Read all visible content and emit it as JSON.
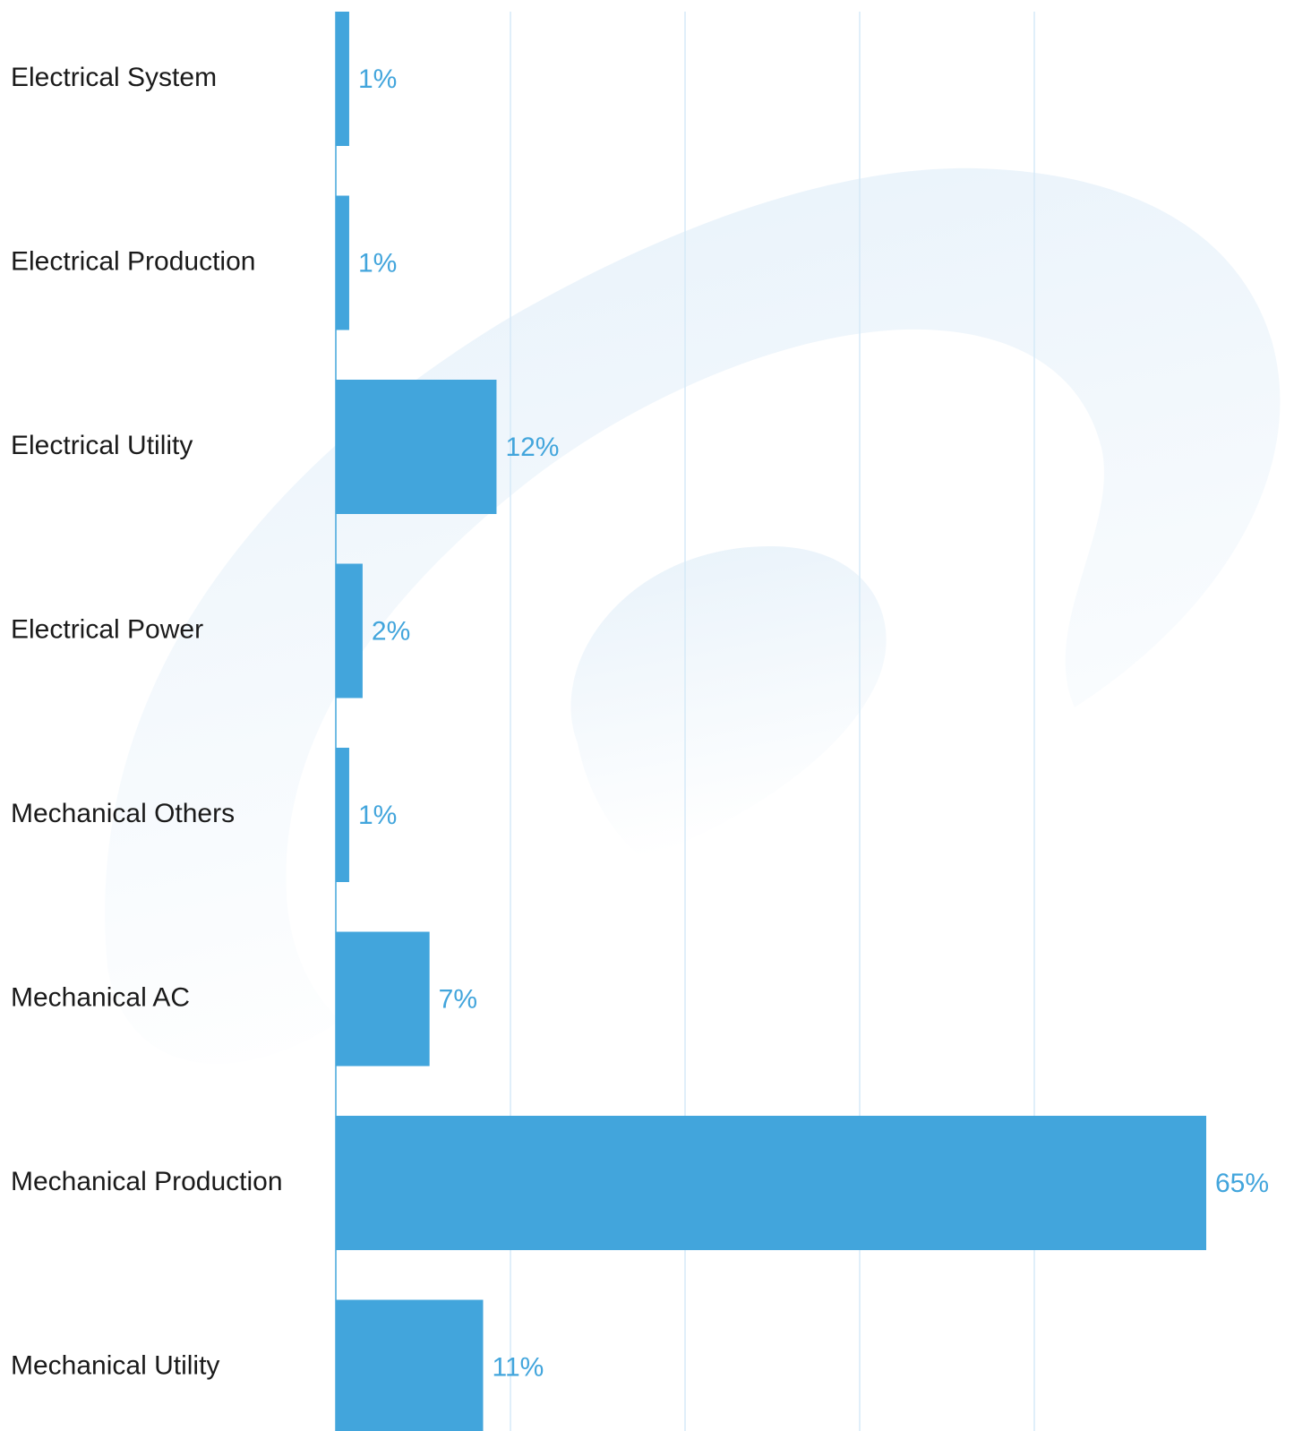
{
  "chart_data": {
    "type": "bar",
    "orientation": "horizontal",
    "categories": [
      "Electrical System",
      "Electrical Production",
      "Electrical Utility",
      "Electrical Power",
      "Mechanical Others",
      "Mechanical AC",
      "Mechanical Production",
      "Mechanical Utility"
    ],
    "values": [
      1,
      1,
      12,
      2,
      1,
      7,
      65,
      11
    ],
    "value_labels": [
      "1%",
      "1%",
      "12%",
      "2%",
      "1%",
      "7%",
      "65%",
      "11%"
    ],
    "xlim": [
      0,
      65
    ],
    "grid": true,
    "legend": "none"
  },
  "colors": {
    "bar": "#42a5dc",
    "value_label": "#42a5dc",
    "category_label": "#1a1a1a",
    "gridline": "#d6eaf8",
    "axis": "#42a5dc",
    "watermark": "#e8f3fb"
  }
}
